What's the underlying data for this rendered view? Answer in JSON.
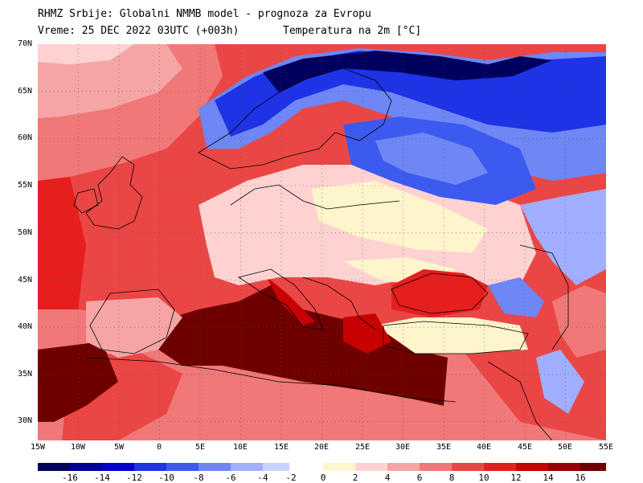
{
  "header": {
    "line1": "RHMZ Srbije: Globalni NMMB model - prognoza za Evropu",
    "line2_left": "Vreme: 25 DEC 2022 03UTC (+003h)",
    "line2_right": "Temperatura na 2m [°C]"
  },
  "map": {
    "lat_labels": [
      "70N",
      "65N",
      "60N",
      "55N",
      "50N",
      "45N",
      "40N",
      "35N",
      "30N"
    ],
    "lat_values": [
      70,
      65,
      60,
      55,
      50,
      45,
      40,
      35,
      30
    ],
    "lon_labels": [
      "15W",
      "10W",
      "5W",
      "0",
      "5E",
      "10E",
      "15E",
      "20E",
      "25E",
      "30E",
      "35E",
      "40E",
      "45E",
      "50E",
      "55E"
    ],
    "lon_values": [
      -15,
      -10,
      -5,
      0,
      5,
      10,
      15,
      20,
      25,
      30,
      35,
      40,
      45,
      50,
      55
    ],
    "extent": {
      "lon_min": -15,
      "lon_max": 55,
      "lat_min": 28,
      "lat_max": 70
    },
    "grid": "dotted",
    "field": "2m temperature"
  },
  "legend": {
    "labels": [
      "-16",
      "-14",
      "-12",
      "-10",
      "-8",
      "-6",
      "-4",
      "-2",
      "0",
      "2",
      "4",
      "6",
      "8",
      "10",
      "12",
      "14",
      "16"
    ],
    "colors": [
      "#00005f",
      "#00009b",
      "#0000d2",
      "#1e32e6",
      "#3c5af0",
      "#6e87f5",
      "#a0afff",
      "#c8d2ff",
      "#ffffff",
      "#fff5cd",
      "#ffd2d2",
      "#f5a5a5",
      "#f07878",
      "#eb4646",
      "#e61e1e",
      "#c80000",
      "#6e0000"
    ]
  }
}
